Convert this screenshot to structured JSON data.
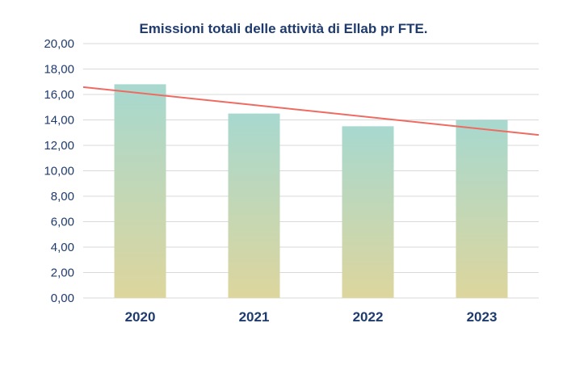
{
  "colors": {
    "title": "#1f3b6e",
    "axis_text": "#1f3b6e",
    "gridline": "#d9d9d9",
    "bar_top": "#a7d8cf",
    "bar_bottom": "#ddd69d",
    "trendline": "#ef6b61"
  },
  "chart_data": {
    "type": "bar",
    "title": "Emissioni totali delle attività di Ellab pr FTE.",
    "categories": [
      "2020",
      "2021",
      "2022",
      "2023"
    ],
    "values": [
      16.8,
      14.5,
      13.5,
      14.0
    ],
    "ylim": [
      0,
      20
    ],
    "yticks": [
      "0,00",
      "2,00",
      "4,00",
      "6,00",
      "8,00",
      "10,00",
      "12,00",
      "14,00",
      "16,00",
      "18,00",
      "20,00"
    ],
    "grid": true,
    "legend": "none",
    "trendline": {
      "type": "linear"
    }
  }
}
